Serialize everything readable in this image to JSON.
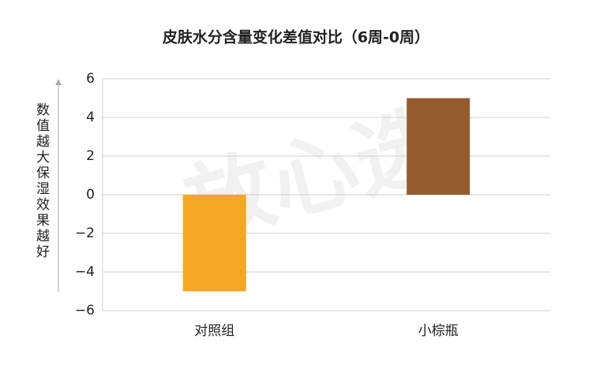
{
  "chart_data": {
    "type": "bar",
    "title": "皮肤水分含量变化差值对比（6周-0周）",
    "y_label": "数值越大保湿效果越好",
    "watermark": "放心选",
    "categories": [
      "对照组",
      "小棕瓶"
    ],
    "values": [
      -5,
      5
    ],
    "colors": [
      "#f5a623",
      "#935c2e"
    ],
    "ylim": [
      -6,
      6
    ],
    "yticks": [
      {
        "value": -6,
        "label": "−6"
      },
      {
        "value": -4,
        "label": "−4"
      },
      {
        "value": -2,
        "label": "−2"
      },
      0,
      2,
      4,
      6
    ],
    "grid": true
  }
}
